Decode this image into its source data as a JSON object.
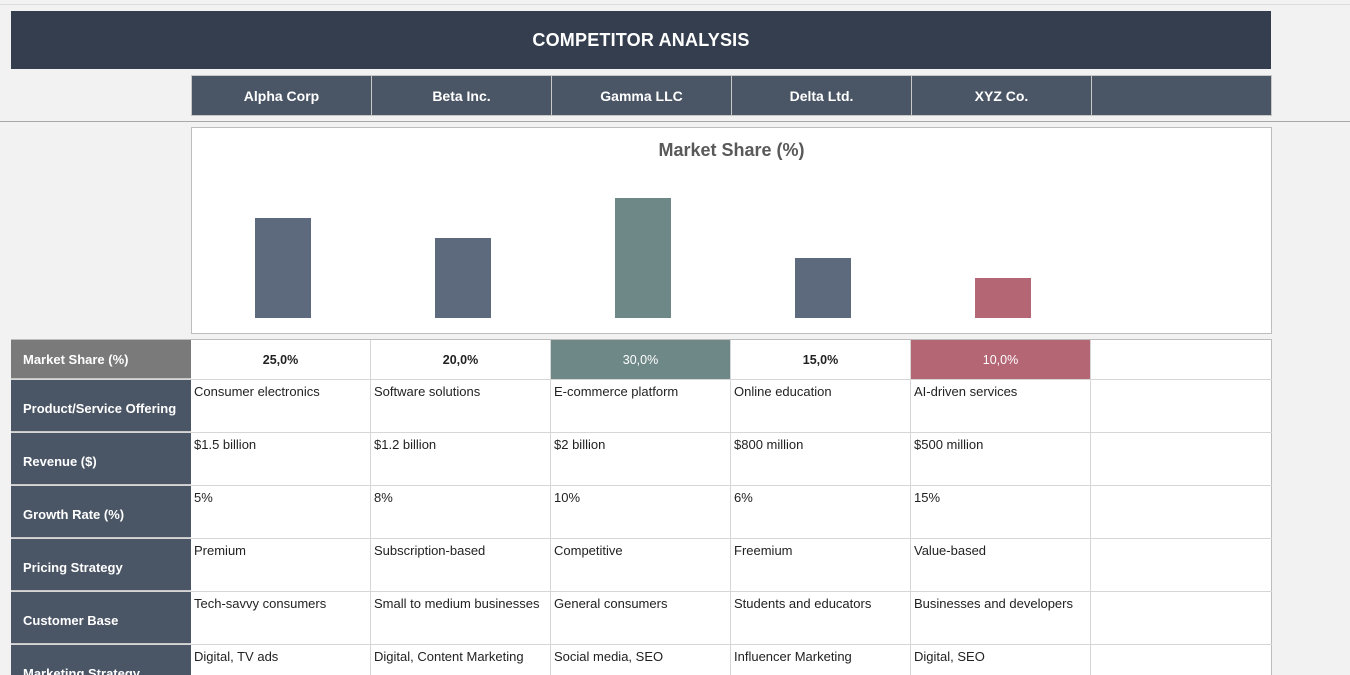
{
  "banner": {
    "title": "COMPETITOR ANALYSIS"
  },
  "competitors": [
    "Alpha Corp",
    "Beta Inc.",
    "Gamma LLC",
    "Delta Ltd.",
    "XYZ Co."
  ],
  "chart_data": {
    "type": "bar",
    "title": "Market Share (%)",
    "categories": [
      "Alpha Corp",
      "Beta Inc.",
      "Gamma LLC",
      "Delta Ltd.",
      "XYZ Co."
    ],
    "values": [
      25.0,
      20.0,
      30.0,
      15.0,
      10.0
    ],
    "ylim": [
      0,
      30
    ],
    "colors": [
      "#5d6a7d",
      "#5d6a7d",
      "#6e8887",
      "#5d6a7d",
      "#b56674"
    ],
    "grid": false,
    "legend": "none"
  },
  "table": {
    "rows": [
      {
        "label": "Market Share (%)",
        "values": [
          "25,0%",
          "20,0%",
          "30,0%",
          "15,0%",
          "10,0%"
        ]
      },
      {
        "label": "Product/Service Offering",
        "values": [
          "Consumer electronics",
          "Software solutions",
          "E-commerce platform",
          "Online education",
          "AI-driven services"
        ]
      },
      {
        "label": "Revenue ($)",
        "values": [
          "$1.5 billion",
          "$1.2 billion",
          "$2 billion",
          "$800 million",
          "$500 million"
        ]
      },
      {
        "label": "Growth Rate (%)",
        "values": [
          "5%",
          "8%",
          "10%",
          "6%",
          "15%"
        ]
      },
      {
        "label": "Pricing Strategy",
        "values": [
          "Premium",
          "Subscription-based",
          "Competitive",
          "Freemium",
          "Value-based"
        ]
      },
      {
        "label": "Customer Base",
        "values": [
          "Tech-savvy consumers",
          "Small to medium businesses",
          "General consumers",
          "Students and educators",
          "Businesses and developers"
        ]
      },
      {
        "label": "Marketing Strategy",
        "values": [
          "Digital, TV ads",
          "Digital, Content Marketing",
          "Social media, SEO",
          "Influencer Marketing",
          "Digital, SEO"
        ]
      }
    ]
  },
  "colors": {
    "banner": "#343e4e",
    "header": "#4a5565",
    "highlight_green": "#6e8887",
    "highlight_red": "#b56674"
  }
}
